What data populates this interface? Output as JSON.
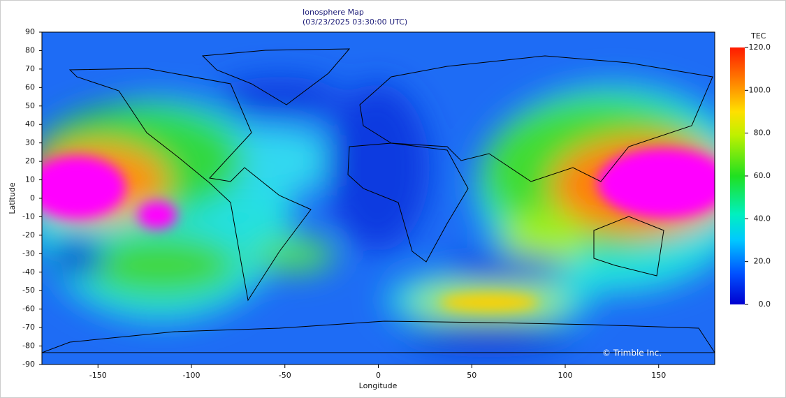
{
  "chart_data": {
    "type": "heatmap",
    "title": "Ionosphere Map",
    "subtitle": "(03/23/2025 03:30:00 UTC)",
    "x_label": "Longitude",
    "y_label": "Latitude",
    "xlim": [
      -180,
      180
    ],
    "ylim": [
      -90,
      90
    ],
    "xticks": [
      -150,
      -100,
      -50,
      0,
      50,
      100,
      150
    ],
    "yticks": [
      -90,
      -80,
      -70,
      -60,
      -50,
      -40,
      -30,
      -20,
      -10,
      0,
      10,
      20,
      30,
      40,
      50,
      60,
      70,
      80,
      90
    ],
    "colorbar": {
      "label": "TEC",
      "lim": [
        0,
        120
      ],
      "ticks": [
        {
          "value": 0,
          "label": "0.0"
        },
        {
          "value": 20,
          "label": "20.0"
        },
        {
          "value": 40,
          "label": "40.0"
        },
        {
          "value": 60,
          "label": "60.0"
        },
        {
          "value": 80,
          "label": "80.0"
        },
        {
          "value": 100,
          "label": "100.0"
        },
        {
          "value": 120,
          "label": "120.0"
        }
      ]
    },
    "annotation": "© Trimble Inc."
  }
}
